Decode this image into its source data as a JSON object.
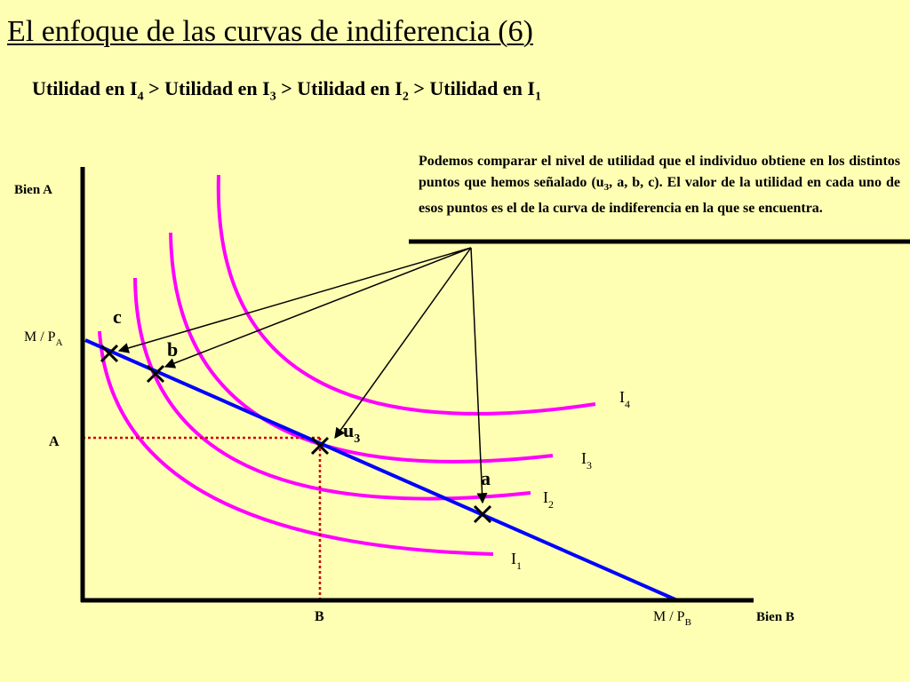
{
  "title": "El enfoque de las curvas de indiferencia (6)",
  "ranking": {
    "parts": [
      {
        "text": "Utilidad en I",
        "sub": "4"
      },
      {
        "text": " > Utilidad en I",
        "sub": "3"
      },
      {
        "text": " > Utilidad en I",
        "sub": "2"
      },
      {
        "text": " > Utilidad en I",
        "sub": "1"
      }
    ]
  },
  "note": {
    "before_sub": "Podemos comparar el nivel de utilidad que el individuo obtiene en los distintos puntos que hemos señalado (u",
    "sub": "3",
    "after_sub": ", a, b, c). El valor de la utilidad en cada uno de esos puntos es el de la curva de indiferencia en la que se encuentra."
  },
  "axes": {
    "y_label": "Bien A",
    "x_label": "Bien B",
    "y_intercept": {
      "text": "M / P",
      "sub": "A"
    },
    "x_intercept": {
      "text": "M / P",
      "sub": "B"
    },
    "y_level": "A",
    "x_level": "B"
  },
  "curves": [
    {
      "main": "I",
      "sub": "1"
    },
    {
      "main": "I",
      "sub": "2"
    },
    {
      "main": "I",
      "sub": "3"
    },
    {
      "main": "I",
      "sub": "4"
    }
  ],
  "points": [
    {
      "main": "c",
      "sub": ""
    },
    {
      "main": "b",
      "sub": ""
    },
    {
      "main": "u",
      "sub": "3"
    },
    {
      "main": "a",
      "sub": ""
    }
  ],
  "colors": {
    "background": "#FFFFB4",
    "budget_line": "#0000FF",
    "indifference_curves": "#FF00FF",
    "guide_lines": "#CC0000",
    "axes": "#000000"
  }
}
